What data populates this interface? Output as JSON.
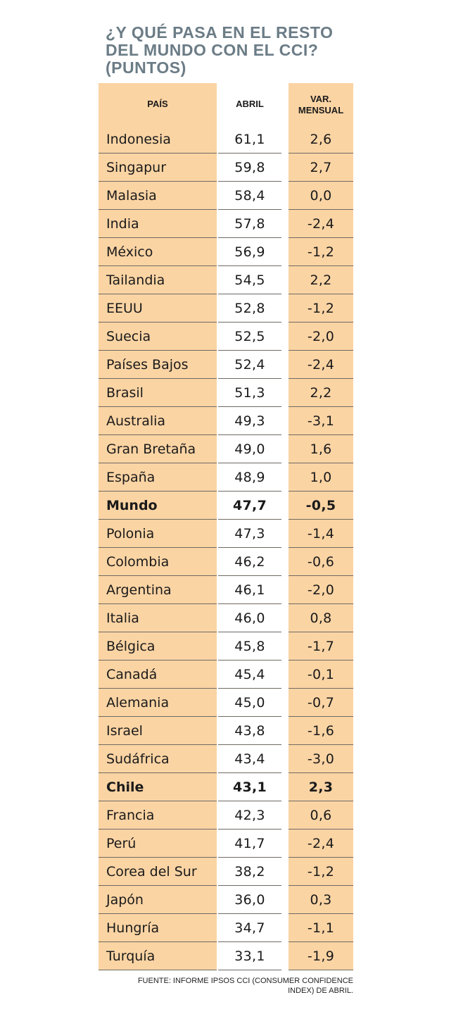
{
  "title_lines": [
    "¿Y QUÉ PASA EN EL RESTO",
    "DEL MUNDO CON EL CCI?",
    "(PUNTOS)"
  ],
  "chart_data": {
    "type": "table",
    "title": "¿Y QUÉ PASA EN EL RESTO DEL MUNDO CON EL CCI? (PUNTOS)",
    "columns": [
      "PAÍS",
      "ABRIL",
      "VAR. MENSUAL"
    ],
    "header_var_lines": [
      "VAR.",
      "MENSUAL"
    ],
    "rows": [
      {
        "country": "Indonesia",
        "abril": "61,1",
        "var": "2,6",
        "bold": false
      },
      {
        "country": "Singapur",
        "abril": "59,8",
        "var": "2,7",
        "bold": false
      },
      {
        "country": "Malasia",
        "abril": "58,4",
        "var": "0,0",
        "bold": false
      },
      {
        "country": "India",
        "abril": "57,8",
        "var": "-2,4",
        "bold": false
      },
      {
        "country": "México",
        "abril": "56,9",
        "var": "-1,2",
        "bold": false
      },
      {
        "country": "Tailandia",
        "abril": "54,5",
        "var": "2,2",
        "bold": false
      },
      {
        "country": "EEUU",
        "abril": "52,8",
        "var": "-1,2",
        "bold": false
      },
      {
        "country": "Suecia",
        "abril": "52,5",
        "var": "-2,0",
        "bold": false
      },
      {
        "country": "Países Bajos",
        "abril": "52,4",
        "var": "-2,4",
        "bold": false
      },
      {
        "country": "Brasil",
        "abril": "51,3",
        "var": "2,2",
        "bold": false
      },
      {
        "country": "Australia",
        "abril": "49,3",
        "var": "-3,1",
        "bold": false
      },
      {
        "country": "Gran Bretaña",
        "abril": "49,0",
        "var": "1,6",
        "bold": false
      },
      {
        "country": "España",
        "abril": "48,9",
        "var": "1,0",
        "bold": false
      },
      {
        "country": "Mundo",
        "abril": "47,7",
        "var": "-0,5",
        "bold": true
      },
      {
        "country": "Polonia",
        "abril": "47,3",
        "var": "-1,4",
        "bold": false
      },
      {
        "country": "Colombia",
        "abril": "46,2",
        "var": "-0,6",
        "bold": false
      },
      {
        "country": "Argentina",
        "abril": "46,1",
        "var": "-2,0",
        "bold": false
      },
      {
        "country": "Italia",
        "abril": "46,0",
        "var": "0,8",
        "bold": false
      },
      {
        "country": "Bélgica",
        "abril": "45,8",
        "var": "-1,7",
        "bold": false
      },
      {
        "country": "Canadá",
        "abril": "45,4",
        "var": "-0,1",
        "bold": false
      },
      {
        "country": "Alemania",
        "abril": "45,0",
        "var": "-0,7",
        "bold": false
      },
      {
        "country": "Israel",
        "abril": "43,8",
        "var": "-1,6",
        "bold": false
      },
      {
        "country": "Sudáfrica",
        "abril": "43,4",
        "var": "-3,0",
        "bold": false
      },
      {
        "country": "Chile",
        "abril": "43,1",
        "var": "2,3",
        "bold": true
      },
      {
        "country": "Francia",
        "abril": "42,3",
        "var": "0,6",
        "bold": false
      },
      {
        "country": "Perú",
        "abril": "41,7",
        "var": "-2,4",
        "bold": false
      },
      {
        "country": "Corea del Sur",
        "abril": "38,2",
        "var": "-1,2",
        "bold": false
      },
      {
        "country": "Japón",
        "abril": "36,0",
        "var": "0,3",
        "bold": false
      },
      {
        "country": "Hungría",
        "abril": "34,7",
        "var": "-1,1",
        "bold": false
      },
      {
        "country": "Turquía",
        "abril": "33,1",
        "var": "-1,9",
        "bold": false
      }
    ]
  },
  "source_lines": [
    "FUENTE: INFORME IPSOS CCI (CONSUMER CONFIDENCE",
    "INDEX) DE ABRIL."
  ],
  "colors": {
    "accent": "#fbd4a4",
    "title": "#6b7c86"
  }
}
